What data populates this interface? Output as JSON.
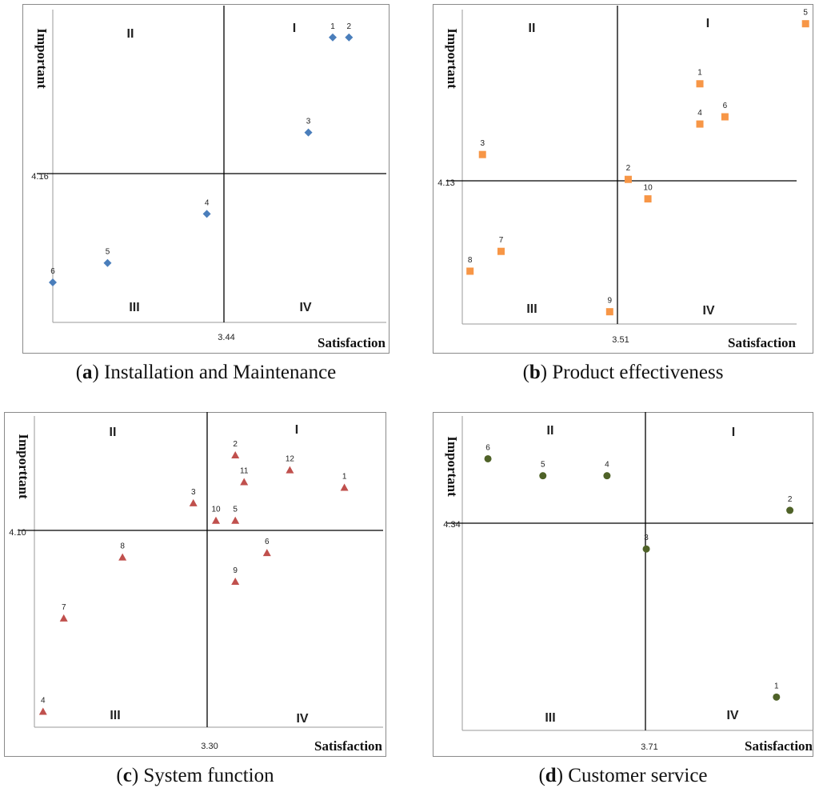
{
  "panels": [
    {
      "letter": "a",
      "caption": "Installation and Maintenance",
      "chart_data": {
        "type": "scatter",
        "xlabel": "Satisfaction",
        "ylabel": "Important",
        "x_threshold_label": "3.44",
        "y_threshold_label": "4.16",
        "quadrants": [
          "I",
          "II",
          "III",
          "IV"
        ],
        "marker": "diamond",
        "color": "#4a7ebb",
        "points": [
          {
            "label": "1",
            "x": 0.67,
            "y": 0.911
          },
          {
            "label": "2",
            "x": 0.77,
            "y": 0.911
          },
          {
            "label": "3",
            "x": 0.52,
            "y": 0.607
          },
          {
            "label": "4",
            "x": -0.1,
            "y": 0.347
          },
          {
            "label": "5",
            "x": -0.68,
            "y": 0.19
          },
          {
            "label": "6",
            "x": -1.0,
            "y": 0.128
          }
        ]
      }
    },
    {
      "letter": "b",
      "caption": "Product effectiveness",
      "chart_data": {
        "type": "scatter",
        "xlabel": "Satisfaction",
        "ylabel": "Important",
        "x_threshold_label": "3.51",
        "y_threshold_label": "4.13",
        "quadrants": [
          "I",
          "II",
          "III",
          "IV"
        ],
        "marker": "square",
        "color": "#f79646",
        "points": [
          {
            "label": "1",
            "x": 0.46,
            "y": 0.764
          },
          {
            "label": "2",
            "x": 0.06,
            "y": 0.46
          },
          {
            "label": "3",
            "x": -0.87,
            "y": 0.539
          },
          {
            "label": "4",
            "x": 0.46,
            "y": 0.636
          },
          {
            "label": "5",
            "x": 1.05,
            "y": 0.955
          },
          {
            "label": "6",
            "x": 0.6,
            "y": 0.659
          },
          {
            "label": "7",
            "x": -0.75,
            "y": 0.231
          },
          {
            "label": "8",
            "x": -0.95,
            "y": 0.168
          },
          {
            "label": "9",
            "x": -0.05,
            "y": 0.039
          },
          {
            "label": "10",
            "x": 0.17,
            "y": 0.398
          }
        ]
      }
    },
    {
      "letter": "c",
      "caption": "System function",
      "chart_data": {
        "type": "scatter",
        "xlabel": "Satisfaction",
        "ylabel": "Importtant",
        "x_threshold_label": "3.30",
        "y_threshold_label": "4.10",
        "quadrants": [
          "I",
          "II",
          "III",
          "IV"
        ],
        "marker": "triangle",
        "color": "#c0504d",
        "points": [
          {
            "label": "1",
            "x": 0.78,
            "y": 0.77
          },
          {
            "label": "2",
            "x": 0.16,
            "y": 0.874
          },
          {
            "label": "3",
            "x": -0.08,
            "y": 0.72
          },
          {
            "label": "4",
            "x": -0.95,
            "y": 0.05
          },
          {
            "label": "5",
            "x": 0.16,
            "y": 0.664
          },
          {
            "label": "6",
            "x": 0.34,
            "y": 0.56
          },
          {
            "label": "7",
            "x": -0.83,
            "y": 0.35
          },
          {
            "label": "8",
            "x": -0.49,
            "y": 0.546
          },
          {
            "label": "9",
            "x": 0.16,
            "y": 0.468
          },
          {
            "label": "10",
            "x": 0.05,
            "y": 0.664
          },
          {
            "label": "11",
            "x": 0.21,
            "y": 0.788
          },
          {
            "label": "12",
            "x": 0.47,
            "y": 0.826
          }
        ]
      }
    },
    {
      "letter": "d",
      "caption": "Customer service",
      "chart_data": {
        "type": "scatter",
        "xlabel": "Satisfaction",
        "ylabel": "Important",
        "x_threshold_label": "3.71",
        "y_threshold_label": "4.34",
        "quadrants": [
          "I",
          "II",
          "III",
          "IV"
        ],
        "marker": "circle",
        "color": "#4f6228",
        "points": [
          {
            "label": "1",
            "x": 0.78,
            "y": 0.106
          },
          {
            "label": "2",
            "x": 0.86,
            "y": 0.7
          },
          {
            "label": "3",
            "x": 0.005,
            "y": 0.577
          },
          {
            "label": "4",
            "x": -0.21,
            "y": 0.81
          },
          {
            "label": "5",
            "x": -0.56,
            "y": 0.81
          },
          {
            "label": "6",
            "x": -0.86,
            "y": 0.864
          }
        ]
      }
    }
  ]
}
